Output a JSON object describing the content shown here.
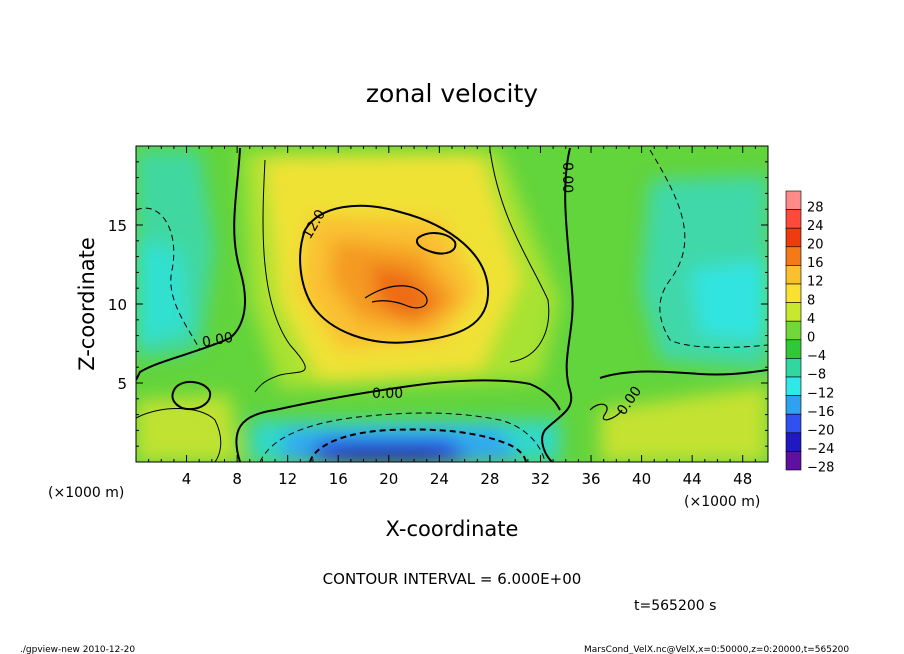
{
  "chart_data": {
    "type": "heatmap",
    "title": "zonal velocity",
    "xlabel": "X-coordinate",
    "ylabel": "Z-coordinate",
    "x_unit": "(×1000 m)",
    "y_unit": "(×1000 m)",
    "xlim": [
      0,
      50
    ],
    "ylim": [
      0,
      20
    ],
    "x_ticks": [
      4,
      8,
      12,
      16,
      20,
      24,
      28,
      32,
      36,
      40,
      44,
      48
    ],
    "y_ticks": [
      5,
      10,
      15
    ],
    "colorbar": {
      "levels": [
        28,
        24,
        20,
        16,
        12,
        8,
        4,
        0,
        -4,
        -8,
        -12,
        -16,
        -20,
        -24,
        -28
      ],
      "colors": [
        "#ff8a8a",
        "#ff4a3a",
        "#f03a10",
        "#f47a18",
        "#fac030",
        "#fae030",
        "#c8e830",
        "#70d838",
        "#30c838",
        "#30d8a0",
        "#30e8e8",
        "#30a0f0",
        "#3050f0",
        "#2018c0",
        "#6010a0"
      ]
    },
    "contour_labels": [
      {
        "text": "12.0"
      },
      {
        "text": "0.00"
      },
      {
        "text": "0.00"
      },
      {
        "text": "0.00"
      },
      {
        "text": "0.00"
      }
    ],
    "contour_interval": "CONTOUR INTERVAL = 6.000E+00",
    "time": "t=565200 s"
  },
  "footer": {
    "left": "./gpview-new  2010-12-20",
    "right": "MarsCond_VelX.nc@VelX,x=0:50000,z=0:20000,t=565200"
  }
}
